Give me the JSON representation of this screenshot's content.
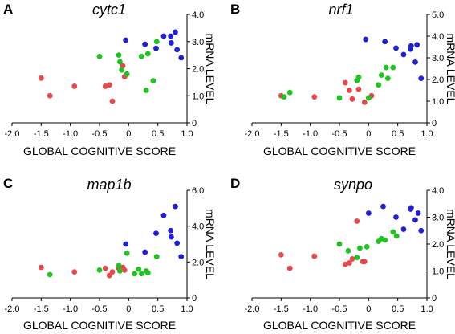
{
  "colors": {
    "red_group": "#e8474c",
    "green_group": "#1fc41f",
    "blue_group": "#1f1fd6"
  },
  "chart_data": [
    {
      "type": "scatter",
      "letter": "A",
      "title": "cytc1",
      "xlabel": "GLOBAL COGNITIVE SCORE",
      "ylabel": "mRNA LEVEL",
      "xlim": [
        -2.0,
        1.0
      ],
      "ylim": [
        0.0,
        4.0
      ],
      "xticks": [
        "-2.0",
        "-1.5",
        "-1.0",
        "-0.5",
        "0",
        "0.5",
        "1.0"
      ],
      "yticks": [
        "0",
        "1.0",
        "2.0",
        "3.0",
        "4.0"
      ],
      "series": [
        {
          "color": "red_group",
          "points": [
            [
              -1.5,
              1.65
            ],
            [
              -1.35,
              1.0
            ],
            [
              -0.93,
              1.35
            ],
            [
              -0.4,
              1.35
            ],
            [
              -0.33,
              1.4
            ],
            [
              -0.28,
              0.8
            ],
            [
              -0.1,
              2.1
            ],
            [
              -0.07,
              1.7
            ]
          ]
        },
        {
          "color": "green_group",
          "points": [
            [
              -0.5,
              2.45
            ],
            [
              -0.17,
              2.5
            ],
            [
              -0.15,
              2.25
            ],
            [
              -0.12,
              1.95
            ],
            [
              -0.03,
              1.8
            ],
            [
              0.22,
              2.45
            ],
            [
              0.28,
              2.9
            ],
            [
              0.3,
              1.2
            ],
            [
              0.33,
              2.55
            ],
            [
              0.42,
              1.55
            ],
            [
              0.48,
              3.0
            ]
          ]
        },
        {
          "color": "blue_group",
          "points": [
            [
              -0.05,
              3.05
            ],
            [
              0.28,
              2.9
            ],
            [
              0.47,
              2.75
            ],
            [
              0.6,
              3.2
            ],
            [
              0.72,
              3.2
            ],
            [
              0.73,
              2.95
            ],
            [
              0.8,
              3.35
            ],
            [
              0.83,
              2.7
            ],
            [
              0.9,
              2.4
            ]
          ]
        }
      ]
    },
    {
      "type": "scatter",
      "letter": "B",
      "title": "nrf1",
      "xlabel": "GLOBAL COGNITIVE SCORE",
      "ylabel": "mRNA LEVEL",
      "xlim": [
        -2.0,
        1.0
      ],
      "ylim": [
        0.0,
        5.0
      ],
      "xticks": [
        "-2.0",
        "-1.5",
        "-1.0",
        "-0.5",
        "0",
        "0.5",
        "1.0"
      ],
      "yticks": [
        "0",
        "1.0",
        "2.0",
        "3.0",
        "4.0",
        "5.0"
      ],
      "series": [
        {
          "color": "red_group",
          "points": [
            [
              -1.5,
              1.25
            ],
            [
              -0.93,
              1.2
            ],
            [
              -0.4,
              1.85
            ],
            [
              -0.33,
              1.5
            ],
            [
              -0.28,
              1.1
            ],
            [
              -0.17,
              1.55
            ],
            [
              -0.07,
              0.95
            ],
            [
              0.05,
              1.25
            ]
          ]
        },
        {
          "color": "green_group",
          "points": [
            [
              -1.45,
              1.2
            ],
            [
              -1.35,
              1.4
            ],
            [
              -0.5,
              1.15
            ],
            [
              -0.2,
              1.95
            ],
            [
              -0.17,
              2.1
            ],
            [
              0.0,
              1.15
            ],
            [
              0.17,
              1.75
            ],
            [
              0.22,
              2.2
            ],
            [
              0.3,
              2.55
            ],
            [
              0.33,
              2.05
            ],
            [
              0.42,
              2.55
            ]
          ]
        },
        {
          "color": "blue_group",
          "points": [
            [
              -0.05,
              3.85
            ],
            [
              0.28,
              3.75
            ],
            [
              0.47,
              3.45
            ],
            [
              0.6,
              3.15
            ],
            [
              0.72,
              3.4
            ],
            [
              0.73,
              3.55
            ],
            [
              0.8,
              2.8
            ],
            [
              0.83,
              3.6
            ],
            [
              0.9,
              2.05
            ]
          ]
        }
      ]
    },
    {
      "type": "scatter",
      "letter": "C",
      "title": "map1b",
      "xlabel": "GLOBAL COGNITIVE SCORE",
      "ylabel": "mRNA LEVEL",
      "xlim": [
        -2.0,
        1.0
      ],
      "ylim": [
        0.0,
        6.0
      ],
      "xticks": [
        "-2.0",
        "-1.5",
        "-1.0",
        "-0.5",
        "0",
        "0.5",
        "1.0"
      ],
      "yticks": [
        "0",
        "2.0",
        "4.0",
        "6.0"
      ],
      "series": [
        {
          "color": "red_group",
          "points": [
            [
              -1.5,
              1.7
            ],
            [
              -0.93,
              1.45
            ],
            [
              -0.4,
              1.65
            ],
            [
              -0.33,
              1.25
            ],
            [
              -0.28,
              1.45
            ],
            [
              -0.17,
              1.65
            ],
            [
              -0.1,
              1.7
            ],
            [
              -0.07,
              1.55
            ]
          ]
        },
        {
          "color": "green_group",
          "points": [
            [
              -1.35,
              1.3
            ],
            [
              -0.5,
              1.55
            ],
            [
              -0.17,
              1.8
            ],
            [
              -0.15,
              1.5
            ],
            [
              -0.03,
              2.5
            ],
            [
              0.1,
              1.35
            ],
            [
              0.17,
              1.6
            ],
            [
              0.22,
              1.35
            ],
            [
              0.3,
              1.5
            ],
            [
              0.33,
              1.4
            ],
            [
              0.48,
              2.3
            ]
          ]
        },
        {
          "color": "blue_group",
          "points": [
            [
              -0.05,
              3.0
            ],
            [
              0.28,
              2.55
            ],
            [
              0.47,
              3.6
            ],
            [
              0.6,
              4.6
            ],
            [
              0.72,
              3.75
            ],
            [
              0.73,
              3.4
            ],
            [
              0.8,
              5.1
            ],
            [
              0.83,
              3.05
            ],
            [
              0.9,
              2.3
            ]
          ]
        }
      ]
    },
    {
      "type": "scatter",
      "letter": "D",
      "title": "synpo",
      "xlabel": "GLOBAL COGNITIVE SCORE",
      "ylabel": "mRNA LEVEL",
      "xlim": [
        -2.0,
        1.0
      ],
      "ylim": [
        0.0,
        4.0
      ],
      "xticks": [
        "-2.0",
        "-1.5",
        "-1.0",
        "-0.5",
        "0",
        "0.5",
        "1.0"
      ],
      "yticks": [
        "0",
        "1.0",
        "2.0",
        "3.0",
        "4.0"
      ],
      "series": [
        {
          "color": "red_group",
          "points": [
            [
              -1.5,
              1.6
            ],
            [
              -1.35,
              1.1
            ],
            [
              -0.93,
              1.55
            ],
            [
              -0.4,
              1.25
            ],
            [
              -0.33,
              1.3
            ],
            [
              -0.28,
              1.45
            ],
            [
              -0.2,
              2.85
            ],
            [
              -0.1,
              1.35
            ],
            [
              -0.07,
              1.35
            ]
          ]
        },
        {
          "color": "green_group",
          "points": [
            [
              -0.5,
              2.0
            ],
            [
              -0.35,
              1.75
            ],
            [
              -0.2,
              1.5
            ],
            [
              -0.15,
              1.85
            ],
            [
              -0.03,
              1.9
            ],
            [
              0.17,
              2.1
            ],
            [
              0.22,
              2.2
            ],
            [
              0.28,
              2.15
            ],
            [
              0.42,
              2.45
            ],
            [
              0.48,
              2.3
            ]
          ]
        },
        {
          "color": "blue_group",
          "points": [
            [
              0.0,
              3.15
            ],
            [
              0.25,
              3.4
            ],
            [
              0.47,
              3.0
            ],
            [
              0.6,
              2.55
            ],
            [
              0.72,
              3.3
            ],
            [
              0.73,
              3.35
            ],
            [
              0.8,
              2.9
            ],
            [
              0.85,
              3.15
            ],
            [
              0.9,
              2.5
            ]
          ]
        }
      ]
    }
  ]
}
